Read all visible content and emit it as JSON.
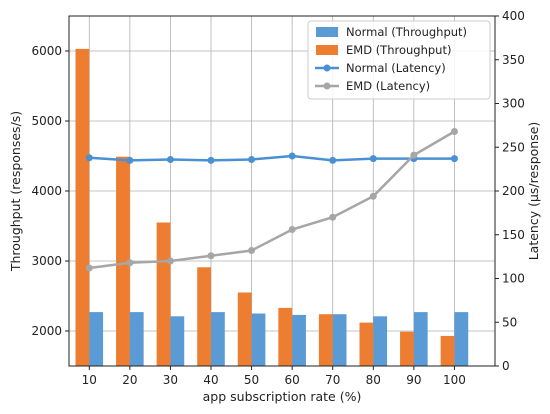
{
  "chart_data": {
    "type": "bar",
    "categories": [
      "10",
      "20",
      "30",
      "40",
      "50",
      "60",
      "70",
      "80",
      "90",
      "100"
    ],
    "xlabel": "app subscription rate (%)",
    "ylabel": "Throughput (responses/s)",
    "ylabel_right": "Latency (µs/response)",
    "ylim": [
      1500,
      6500
    ],
    "ylim_right": [
      0,
      400
    ],
    "yticks": [
      2000,
      3000,
      4000,
      5000,
      6000
    ],
    "yticks_right": [
      0,
      50,
      100,
      150,
      200,
      250,
      300,
      350,
      400
    ],
    "grid": true,
    "legend_position": "top-right",
    "bar_series": [
      {
        "name": "EMD (Throughput)",
        "color": "#ed7d31",
        "values": [
          6030,
          4490,
          3550,
          2910,
          2550,
          2330,
          2240,
          2120,
          1990,
          1930
        ]
      },
      {
        "name": "Normal (Throughput)",
        "color": "#5b9bd5",
        "values": [
          2270,
          2270,
          2210,
          2270,
          2250,
          2230,
          2240,
          2210,
          2270,
          2270
        ]
      }
    ],
    "line_series": [
      {
        "name": "Normal (Latency)",
        "color": "#4a90d2",
        "axis": "right",
        "values": [
          238,
          235,
          236,
          235,
          236,
          240,
          235,
          237,
          237,
          237
        ]
      },
      {
        "name": "EMD (Latency)",
        "color": "#a6a6a6",
        "axis": "right",
        "values": [
          112,
          118,
          120,
          126,
          132,
          156,
          170,
          194,
          241,
          268
        ]
      }
    ],
    "legend": [
      {
        "name": "Normal (Throughput)",
        "kind": "bar",
        "color": "#5b9bd5"
      },
      {
        "name": "EMD (Throughput)",
        "kind": "bar",
        "color": "#ed7d31"
      },
      {
        "name": "Normal (Latency)",
        "kind": "line",
        "color": "#4a90d2"
      },
      {
        "name": "EMD (Latency)",
        "kind": "line",
        "color": "#a6a6a6"
      }
    ]
  }
}
